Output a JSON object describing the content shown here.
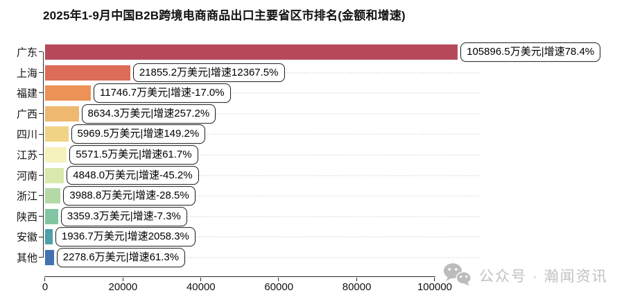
{
  "page": {
    "title": "2025年1-9月中国B2B跨境电商商品出口主要省区市排名(金额和增速)"
  },
  "watermark": {
    "icon": "wechat-icon",
    "text": "公众号 · 瀚闻资讯",
    "color": "#c1c1c1"
  },
  "chart_data": {
    "type": "bar",
    "orientation": "horizontal",
    "title": "2025年1-9月中国B2B跨境电商商品出口主要省区市排名(金额和增速)",
    "value_unit": "万美元",
    "categories": [
      "广东",
      "上海",
      "福建",
      "广西",
      "四川",
      "江苏",
      "河南",
      "浙江",
      "陕西",
      "安徽",
      "其他"
    ],
    "values": [
      105896.5,
      21855.2,
      11746.7,
      8634.3,
      5969.5,
      5571.5,
      4848.0,
      3988.8,
      3359.3,
      1936.7,
      2278.6
    ],
    "growth_pct": [
      78.4,
      12367.5,
      -17.0,
      257.2,
      149.2,
      61.7,
      -45.2,
      -28.5,
      -7.3,
      2058.3,
      61.3
    ],
    "bar_labels": [
      "105896.5万美元|增速78.4%",
      "21855.2万美元|增速12367.5%",
      "11746.7万美元|增速-17.0%",
      "8634.3万美元|增速257.2%",
      "5969.5万美元|增速149.2%",
      "5571.5万美元|增速61.7%",
      "4848.0万美元|增速-45.2%",
      "3988.8万美元|增速-28.5%",
      "3359.3万美元|增速-7.3%",
      "1936.7万美元|增速2058.3%",
      "2278.6万美元|增速61.3%"
    ],
    "bar_colors": [
      "#b64a5c",
      "#dd6d58",
      "#ec9257",
      "#eeb871",
      "#f0d385",
      "#f6f2bb",
      "#d9e9ab",
      "#b3d9a6",
      "#81c5a2",
      "#4da1a8",
      "#4173b3"
    ],
    "xticks": [
      0,
      20000,
      40000,
      60000,
      80000,
      100000
    ],
    "xlim": [
      0,
      111500
    ],
    "grid": "horizontal-dotted",
    "legend": "none"
  }
}
